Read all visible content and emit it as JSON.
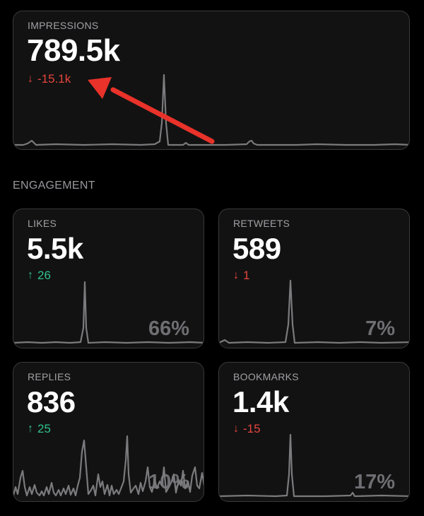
{
  "impressions": {
    "label": "IMPRESSIONS",
    "value": "789.5k",
    "delta": "-15.1k",
    "delta_direction": "down",
    "delta_icon": "arrow-down-icon"
  },
  "engagement": {
    "title": "ENGAGEMENT",
    "cards": [
      {
        "key": "likes",
        "label": "LIKES",
        "value": "5.5k",
        "delta": "26",
        "delta_direction": "up",
        "percent": "66%"
      },
      {
        "key": "retweets",
        "label": "RETWEETS",
        "value": "589",
        "delta": "1",
        "delta_direction": "down",
        "percent": "7%"
      },
      {
        "key": "replies",
        "label": "REPLIES",
        "value": "836",
        "delta": "25",
        "delta_direction": "up",
        "percent": "10%"
      },
      {
        "key": "bookmarks",
        "label": "BOOKMARKS",
        "value": "1.4k",
        "delta": "-15",
        "delta_direction": "down",
        "percent": "17%"
      }
    ]
  },
  "colors": {
    "background": "#000000",
    "card": "#121212",
    "card_border": "#3a3a3c",
    "down": "#e5453d",
    "up": "#2fc18c",
    "sparkline": "#7b7b7e",
    "annotation_arrow": "#e8322a"
  }
}
